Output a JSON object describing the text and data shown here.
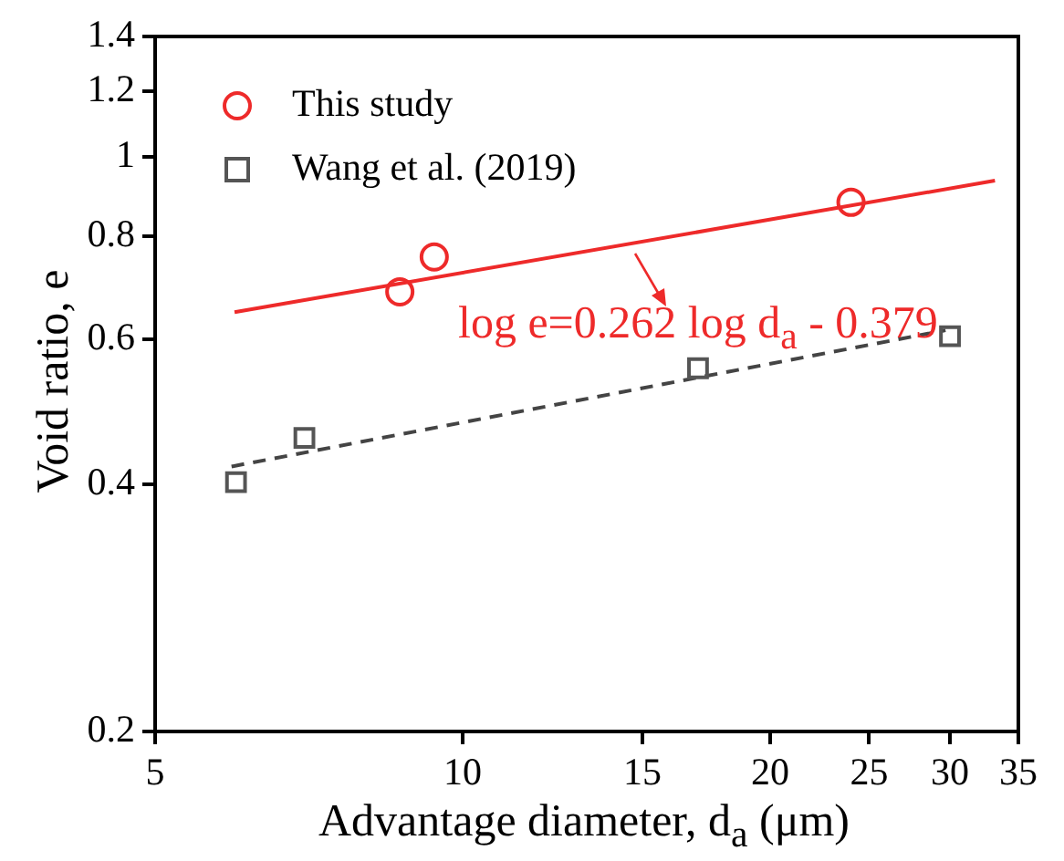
{
  "chart_data": {
    "type": "scatter",
    "xlabel": "Advantage diameter, d$_{a}$ (μm)",
    "ylabel": "Void ratio, e",
    "log": "xy",
    "grid": false,
    "legend": "top left",
    "xlim": [
      5,
      35
    ],
    "xticks": [
      5,
      10,
      15,
      20,
      25,
      30,
      35
    ],
    "ylim": [
      0.2,
      1.4
    ],
    "yticks": [
      0.2,
      0.4,
      0.6,
      0.8,
      1,
      1.2,
      1.4
    ],
    "annotations": [
      "log e=0.262 log d$_{a}$ - 0.379"
    ],
    "series": [
      {
        "name": "This study",
        "type": "scatter",
        "marker": "circle",
        "color": "#ee2a2a",
        "x": [
          8.68,
          9.38,
          24
        ],
        "values": [
          0.685,
          0.755,
          0.88
        ]
      },
      {
        "name": "Wang et al. (2019)",
        "type": "scatter",
        "marker": "square",
        "color": "#555555",
        "x": [
          6,
          7,
          17,
          30
        ],
        "values": [
          0.402,
          0.455,
          0.553,
          0.605
        ]
      },
      {
        "type": "line",
        "marker": "none",
        "line_style": "solid",
        "color": "#ee2a2a",
        "x": [
          5.98,
          33.2
        ],
        "values": [
          0.647,
          0.935
        ]
      },
      {
        "type": "line",
        "marker": "none",
        "line_style": "dashed",
        "color": "#444444",
        "x": [
          5.94,
          29.7
        ],
        "values": [
          0.42,
          0.615
        ]
      }
    ]
  }
}
